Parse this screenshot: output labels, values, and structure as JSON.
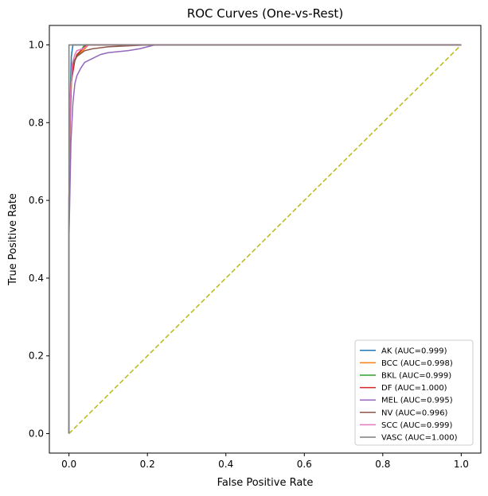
{
  "chart_data": {
    "type": "line",
    "title": "ROC Curves (One-vs-Rest)",
    "xlabel": "False Positive Rate",
    "ylabel": "True Positive Rate",
    "xlim": [
      -0.05,
      1.05
    ],
    "ylim": [
      -0.05,
      1.05
    ],
    "xticks": [
      "0.0",
      "0.2",
      "0.4",
      "0.6",
      "0.8",
      "1.0"
    ],
    "yticks": [
      "0.0",
      "0.2",
      "0.4",
      "0.6",
      "0.8",
      "1.0"
    ],
    "grid": false,
    "legend_position": "lower-right",
    "series": [
      {
        "name": "AK (AUC=0.999)",
        "color": "#1f77b4",
        "points": [
          [
            0,
            0
          ],
          [
            0,
            0.5
          ],
          [
            0.002,
            0.75
          ],
          [
            0.004,
            0.9
          ],
          [
            0.006,
            0.97
          ],
          [
            0.01,
            1.0
          ],
          [
            1.0,
            1.0
          ]
        ]
      },
      {
        "name": "BCC (AUC=0.998)",
        "color": "#ff7f0e",
        "points": [
          [
            0,
            0
          ],
          [
            0,
            0.55
          ],
          [
            0.003,
            0.8
          ],
          [
            0.006,
            0.9
          ],
          [
            0.01,
            0.95
          ],
          [
            0.02,
            0.97
          ],
          [
            0.035,
            0.985
          ],
          [
            0.05,
            1.0
          ],
          [
            1.0,
            1.0
          ]
        ]
      },
      {
        "name": "BKL (AUC=0.999)",
        "color": "#2ca02c",
        "points": [
          [
            0,
            0
          ],
          [
            0,
            0.55
          ],
          [
            0.003,
            0.85
          ],
          [
            0.006,
            0.93
          ],
          [
            0.01,
            0.955
          ],
          [
            0.02,
            0.97
          ],
          [
            0.03,
            0.985
          ],
          [
            0.04,
            1.0
          ],
          [
            1.0,
            1.0
          ]
        ]
      },
      {
        "name": "DF (AUC=1.000)",
        "color": "#d62728",
        "points": [
          [
            0,
            0
          ],
          [
            0,
            0.6
          ],
          [
            0.002,
            0.8
          ],
          [
            0.005,
            0.9
          ],
          [
            0.01,
            0.93
          ],
          [
            0.015,
            0.96
          ],
          [
            0.02,
            0.975
          ],
          [
            0.03,
            0.985
          ],
          [
            0.045,
            1.0
          ],
          [
            1.0,
            1.0
          ]
        ]
      },
      {
        "name": "MEL (AUC=0.995)",
        "color": "#9467bd",
        "points": [
          [
            0,
            0
          ],
          [
            0,
            0.5
          ],
          [
            0.005,
            0.75
          ],
          [
            0.01,
            0.85
          ],
          [
            0.015,
            0.9
          ],
          [
            0.02,
            0.92
          ],
          [
            0.03,
            0.94
          ],
          [
            0.04,
            0.955
          ],
          [
            0.06,
            0.965
          ],
          [
            0.08,
            0.975
          ],
          [
            0.1,
            0.98
          ],
          [
            0.15,
            0.985
          ],
          [
            0.18,
            0.99
          ],
          [
            0.2,
            0.995
          ],
          [
            0.22,
            1.0
          ],
          [
            1.0,
            1.0
          ]
        ]
      },
      {
        "name": "NV (AUC=0.996)",
        "color": "#8c564b",
        "points": [
          [
            0,
            0
          ],
          [
            0,
            0.6
          ],
          [
            0.003,
            0.8
          ],
          [
            0.006,
            0.9
          ],
          [
            0.01,
            0.95
          ],
          [
            0.02,
            0.97
          ],
          [
            0.04,
            0.985
          ],
          [
            0.06,
            0.99
          ],
          [
            0.1,
            0.995
          ],
          [
            0.2,
            1.0
          ],
          [
            1.0,
            1.0
          ]
        ]
      },
      {
        "name": "SCC (AUC=0.999)",
        "color": "#e377c2",
        "points": [
          [
            0,
            0
          ],
          [
            0,
            0.6
          ],
          [
            0.003,
            0.85
          ],
          [
            0.008,
            0.95
          ],
          [
            0.015,
            0.975
          ],
          [
            0.02,
            0.985
          ],
          [
            0.035,
            0.99
          ],
          [
            0.05,
            1.0
          ],
          [
            1.0,
            1.0
          ]
        ]
      },
      {
        "name": "VASC (AUC=1.000)",
        "color": "#7f7f7f",
        "points": [
          [
            0,
            0
          ],
          [
            0,
            1.0
          ],
          [
            1.0,
            1.0
          ]
        ]
      }
    ],
    "diagonal": {
      "color": "#bcbd22",
      "style": "dashed",
      "points": [
        [
          0,
          0
        ],
        [
          1,
          1
        ]
      ]
    }
  }
}
